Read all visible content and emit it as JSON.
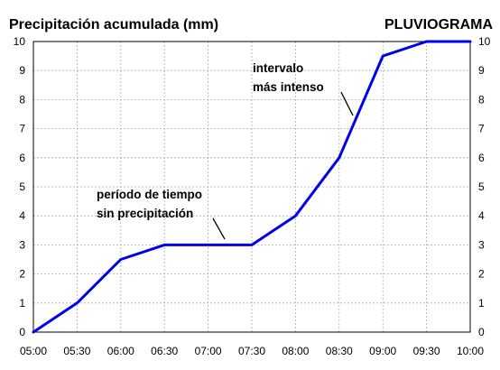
{
  "chart_data": {
    "type": "line",
    "title": "Precipitación acumulada (mm)",
    "subtitle": "PLUVIOGRAMA",
    "xlabel": "",
    "ylabel": "",
    "categories": [
      "05:00",
      "05:30",
      "06:00",
      "06:30",
      "07:00",
      "07:30",
      "08:00",
      "08:30",
      "09:00",
      "09:30",
      "10:00"
    ],
    "y_ticks": [
      "0",
      "1",
      "2",
      "3",
      "4",
      "5",
      "6",
      "7",
      "8",
      "9",
      "10"
    ],
    "ylim": [
      0,
      10
    ],
    "grid": true,
    "series": [
      {
        "color": "#0000ee",
        "x": [
          "05:00",
          "05:30",
          "06:00",
          "06:30",
          "07:00",
          "07:30",
          "08:00",
          "08:30",
          "09:00",
          "09:30",
          "10:00"
        ],
        "values": [
          0,
          1,
          2.5,
          3,
          3,
          3,
          4,
          6,
          9.5,
          10,
          10
        ]
      }
    ],
    "annotations": [
      {
        "name": "annotation-dry-period",
        "lines": [
          "período de tiempo",
          "sin precipitación"
        ],
        "point_x": "07:10",
        "point_y": 3
      },
      {
        "name": "annotation-intense-interval",
        "lines": [
          "intervalo",
          "más intenso"
        ],
        "point_x": "08:38",
        "point_y": 7.5
      }
    ]
  }
}
